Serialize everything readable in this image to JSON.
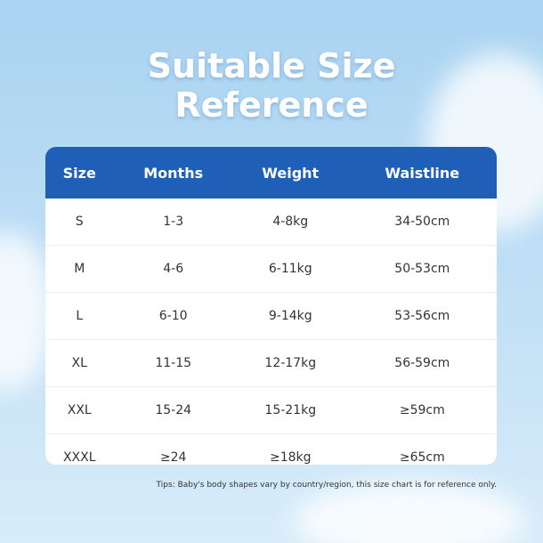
{
  "header": {
    "title_line1": "Suitable Size",
    "title_line2": "Reference"
  },
  "table": {
    "columns": [
      "Size",
      "Months",
      "Weight",
      "Waistline"
    ],
    "rows": [
      [
        "S",
        "1-3",
        "4-8kg",
        "34-50cm"
      ],
      [
        "M",
        "4-6",
        "6-11kg",
        "50-53cm"
      ],
      [
        "L",
        "6-10",
        "9-14kg",
        "53-56cm"
      ],
      [
        "XL",
        "11-15",
        "12-17kg",
        "56-59cm"
      ],
      [
        "XXL",
        "15-24",
        "15-21kg",
        "≥59cm"
      ],
      [
        "XXXL",
        "≥24",
        "≥18kg",
        "≥65cm"
      ]
    ]
  },
  "footer": {
    "tips": "Tips: Baby's body shapes vary by country/region, this size chart is for reference only."
  }
}
